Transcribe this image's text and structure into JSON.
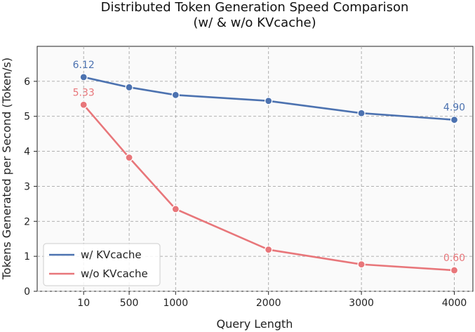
{
  "chart_data": {
    "type": "line",
    "title": "Distributed Token Generation Speed Comparison",
    "subtitle": "(w/ & w/o KVcache)",
    "xlabel": "Query Length",
    "ylabel": "Tokens Generated per Second (Token/s)",
    "x": [
      10,
      500,
      1000,
      2000,
      3000,
      4000
    ],
    "x_tick_labels": [
      "10",
      "500",
      "1000",
      "2000",
      "3000",
      "4000"
    ],
    "y_ticks": [
      0,
      1,
      2,
      3,
      4,
      5,
      6
    ],
    "y_tick_labels": [
      "0",
      "1",
      "2",
      "3",
      "4",
      "5",
      "6"
    ],
    "xlim": [
      -490,
      4200
    ],
    "ylim": [
      0,
      7
    ],
    "grid": true,
    "legend_position": "lower-left",
    "series": [
      {
        "name": "w/ KVcache",
        "color": "#4c72b0",
        "values": [
          6.12,
          5.83,
          5.61,
          5.44,
          5.09,
          4.9
        ],
        "annotations": [
          {
            "index": 0,
            "label": "6.12"
          },
          {
            "index": 5,
            "label": "4.90"
          }
        ]
      },
      {
        "name": "w/o KVcache",
        "color": "#e8767a",
        "values": [
          5.33,
          3.82,
          2.35,
          1.19,
          0.77,
          0.6
        ],
        "annotations": [
          {
            "index": 0,
            "label": "5.33"
          },
          {
            "index": 5,
            "label": "0.60"
          }
        ]
      }
    ]
  }
}
